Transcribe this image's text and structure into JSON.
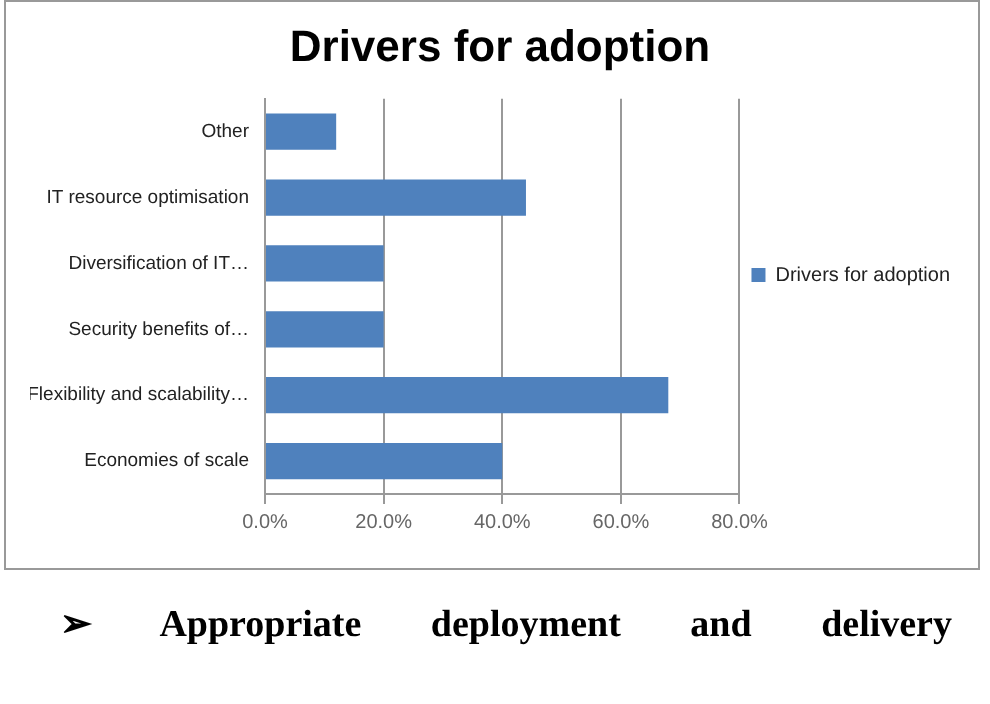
{
  "chart_data": {
    "type": "bar",
    "orientation": "horizontal",
    "title": "Drivers for adoption",
    "categories": [
      "Other",
      "IT resource optimisation",
      "Diversification of IT…",
      "Security benefits of…",
      "Flexibility and scalability…",
      "Economies of scale"
    ],
    "series": [
      {
        "name": "Drivers for adoption",
        "color": "#4f81bd",
        "values": [
          12,
          44,
          20,
          20,
          68,
          40
        ]
      }
    ],
    "xlim": [
      0,
      80
    ],
    "xticks": [
      {
        "value": 0,
        "label": "0.0%"
      },
      {
        "value": 20,
        "label": "20.0%"
      },
      {
        "value": 40,
        "label": "40.0%"
      },
      {
        "value": 60,
        "label": "60.0%"
      },
      {
        "value": 80,
        "label": "80.0%"
      }
    ],
    "grid": "x",
    "legend": "right",
    "annotations": [
      "➢ Appropriate deployment and delivery"
    ]
  }
}
